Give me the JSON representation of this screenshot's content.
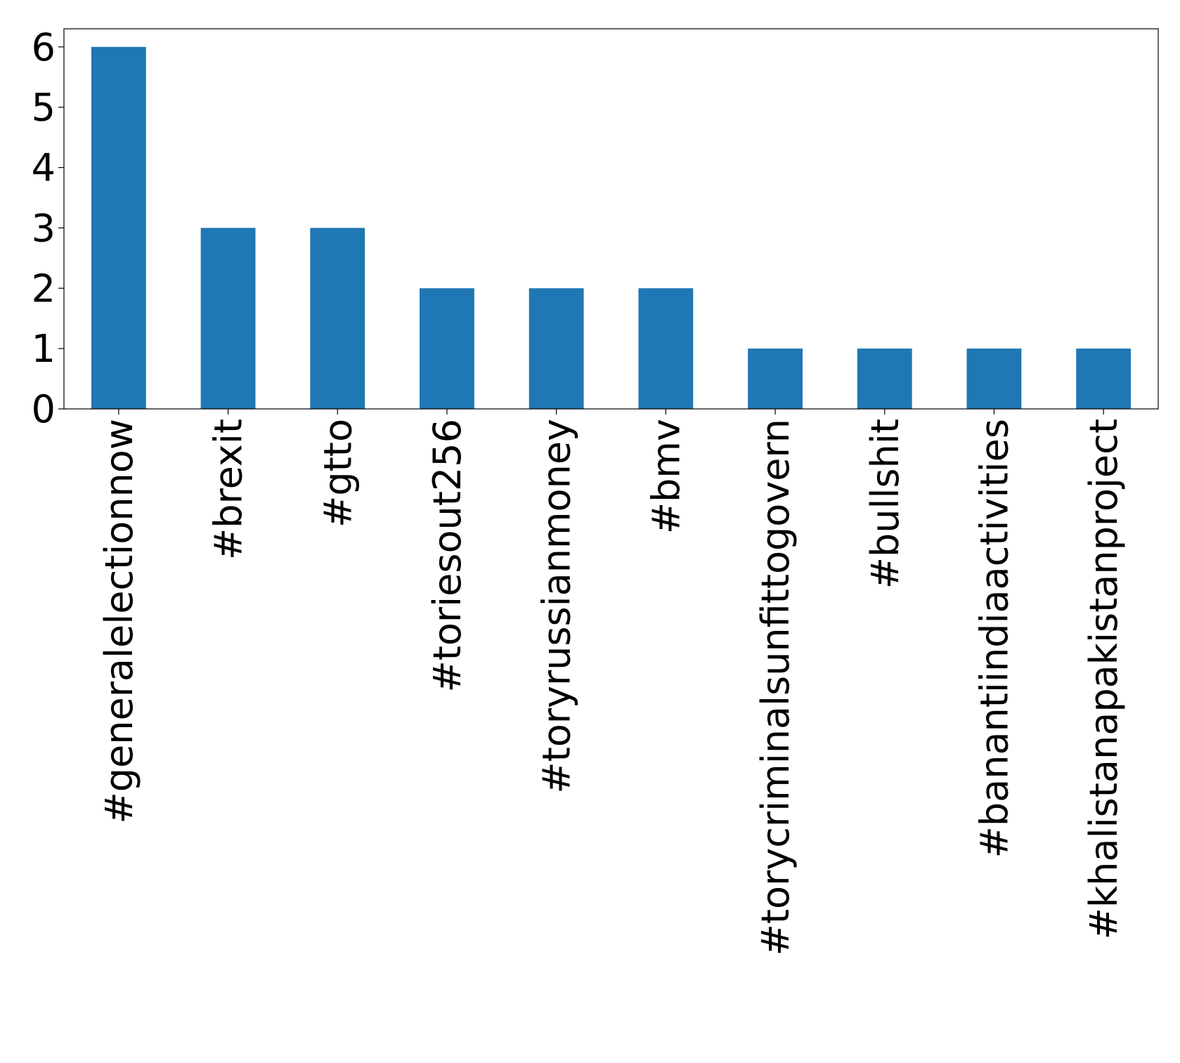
{
  "chart_data": {
    "type": "bar",
    "categories": [
      "#generalelectionnow",
      "#brexit",
      "#gtto",
      "#toriesout256",
      "#toryrussianmoney",
      "#bmv",
      "#torycriminalsunfittogovern",
      "#bullshit",
      "#banantiindiaactivities",
      "#khalistanapakistanproject"
    ],
    "values": [
      6,
      3,
      3,
      2,
      2,
      2,
      1,
      1,
      1,
      1
    ],
    "color": "#1f77b4",
    "ylim": [
      0,
      6.3
    ],
    "yticks": [
      0,
      1,
      2,
      3,
      4,
      5,
      6
    ],
    "grid": false
  }
}
